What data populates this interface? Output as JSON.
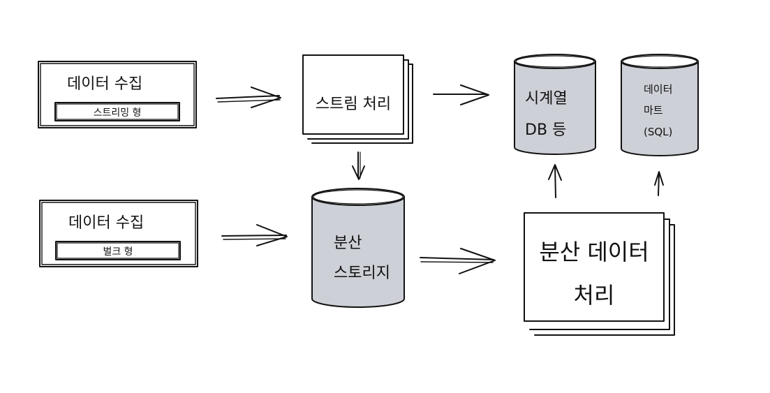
{
  "colors": {
    "ink": "#111111",
    "storage_fill": "#cdd0d6",
    "background": "#ffffff"
  },
  "nodes": {
    "collect_stream": {
      "title": "데이터 수집",
      "tag": "스트리밍 형"
    },
    "collect_bulk": {
      "title": "데이터 수집",
      "tag": "벌크 형"
    },
    "stream_processing": {
      "label": "스트림 처리"
    },
    "distributed_storage": {
      "line1": "분산",
      "line2": "스토리지"
    },
    "timeseries_db": {
      "line1": "시계열",
      "line2": "DB 등"
    },
    "data_mart": {
      "line1": "데이터",
      "line2": "마트",
      "line3": "(SQL)"
    },
    "distributed_processing": {
      "line1": "분산 데이터",
      "line2": "처리"
    }
  },
  "edges": [
    {
      "from": "collect_stream",
      "to": "stream_processing"
    },
    {
      "from": "collect_bulk",
      "to": "distributed_storage"
    },
    {
      "from": "stream_processing",
      "to": "distributed_storage"
    },
    {
      "from": "stream_processing",
      "to": "timeseries_db"
    },
    {
      "from": "distributed_storage",
      "to": "distributed_processing"
    },
    {
      "from": "distributed_processing",
      "to": "timeseries_db"
    },
    {
      "from": "distributed_processing",
      "to": "data_mart"
    }
  ]
}
